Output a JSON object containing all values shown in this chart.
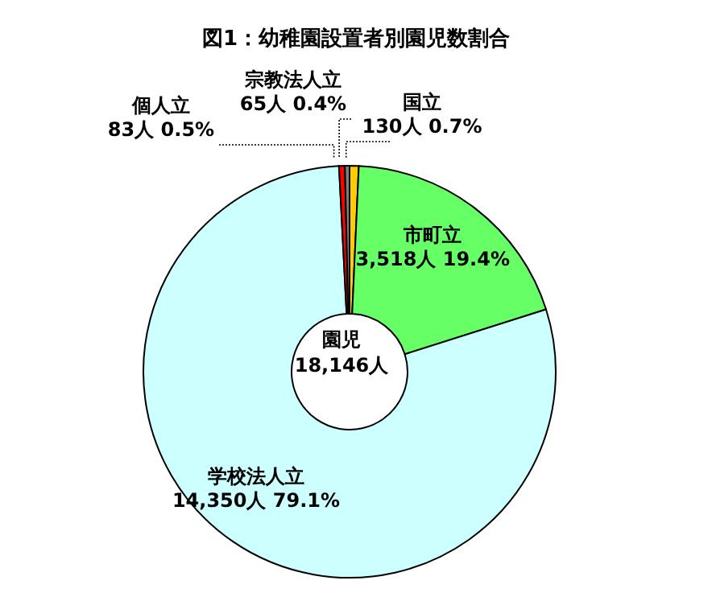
{
  "chart_data": {
    "type": "donut",
    "title": "図1：幼稚園設置者別園児数割合",
    "categories": [
      "国立",
      "市町立",
      "学校法人立",
      "個人立",
      "宗教法人立"
    ],
    "values": [
      130,
      3518,
      14350,
      83,
      65
    ],
    "value_labels": [
      "130人 0.7%",
      "3,518人 19.4%",
      "14,350人 79.1%",
      "83人 0.5%",
      "65人 0.4%"
    ],
    "colors": [
      "#ffcc00",
      "#66ff66",
      "#ccffff",
      "#ff0000",
      "#808080"
    ],
    "annotations": [
      "園児 18,146人"
    ]
  }
}
